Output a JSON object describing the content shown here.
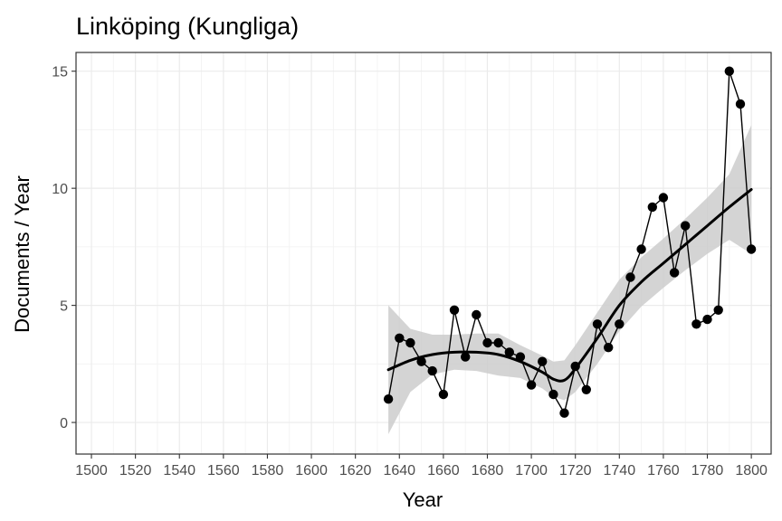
{
  "chart_data": {
    "type": "line",
    "title": "Linköping (Kungliga)",
    "xlabel": "Year",
    "ylabel": "Documents / Year",
    "xlim": [
      1493,
      1809
    ],
    "ylim": [
      -1.35,
      15.8
    ],
    "x_ticks": [
      1500,
      1520,
      1540,
      1560,
      1580,
      1600,
      1620,
      1640,
      1660,
      1680,
      1700,
      1720,
      1740,
      1760,
      1780,
      1800
    ],
    "x_tick_labels": [
      "1500",
      "1520",
      "1540",
      "1560",
      "1580",
      "1600",
      "1620",
      "1640",
      "1660",
      "1680",
      "1700",
      "1720",
      "1740",
      "1760",
      "1780",
      "1800"
    ],
    "y_ticks": [
      0,
      5,
      10,
      15
    ],
    "y_tick_labels": [
      "0",
      "5",
      "10",
      "15"
    ],
    "grid": true,
    "series": [
      {
        "kind": "points-line",
        "color": "#000000",
        "x": [
          1635,
          1640,
          1645,
          1650,
          1655,
          1660,
          1665,
          1670,
          1675,
          1680,
          1685,
          1690,
          1695,
          1700,
          1705,
          1710,
          1715,
          1720,
          1725,
          1730,
          1735,
          1740,
          1745,
          1750,
          1755,
          1760,
          1765,
          1770,
          1775,
          1780,
          1785,
          1790,
          1795,
          1800
        ],
        "y": [
          1.0,
          3.6,
          3.4,
          2.6,
          2.2,
          1.2,
          4.8,
          2.8,
          4.6,
          3.4,
          3.4,
          3.0,
          2.8,
          1.6,
          2.6,
          1.2,
          0.4,
          2.4,
          1.4,
          4.2,
          3.2,
          4.2,
          6.2,
          7.4,
          9.2,
          9.6,
          6.4,
          8.4,
          4.2,
          4.4,
          4.8,
          15.0,
          13.6,
          7.4
        ]
      },
      {
        "kind": "smooth",
        "color": "#000000",
        "band_color": "#cccccc",
        "x": [
          1635,
          1645,
          1655,
          1665,
          1675,
          1685,
          1695,
          1705,
          1710,
          1715,
          1720,
          1730,
          1740,
          1750,
          1760,
          1770,
          1780,
          1790,
          1800
        ],
        "y": [
          2.25,
          2.65,
          2.9,
          3.0,
          3.0,
          2.9,
          2.6,
          2.15,
          1.85,
          1.8,
          2.3,
          3.6,
          5.0,
          6.0,
          6.8,
          7.6,
          8.4,
          9.2,
          9.95
        ],
        "lower": [
          -0.5,
          1.3,
          2.05,
          2.25,
          2.2,
          2.0,
          1.9,
          1.45,
          1.1,
          0.95,
          1.3,
          2.5,
          3.9,
          4.95,
          5.75,
          6.5,
          7.2,
          7.8,
          7.2
        ],
        "upper": [
          5.0,
          4.0,
          3.75,
          3.75,
          3.8,
          3.8,
          3.3,
          2.85,
          2.6,
          2.65,
          3.3,
          4.7,
          6.1,
          7.05,
          7.85,
          8.7,
          9.6,
          10.6,
          12.7
        ]
      }
    ]
  }
}
